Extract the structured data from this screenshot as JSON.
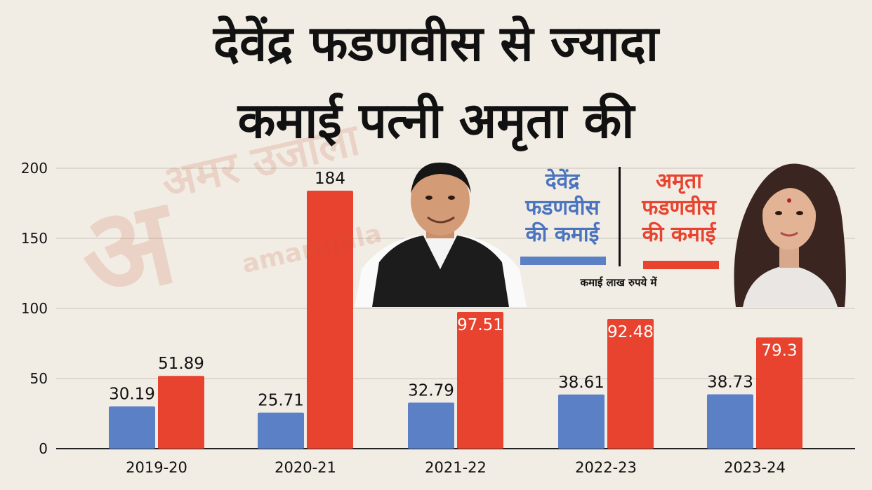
{
  "title_line1": "देवेंद्र फडणवीस से ज्यादा",
  "title_line2": "कमाई पत्नी अमृता की",
  "legend": {
    "devendra_label": [
      "देवेंद्र",
      "फडणवीस",
      "की कमाई"
    ],
    "amruta_label": [
      "अमृता",
      "फडणवीस",
      "की कमाई"
    ],
    "unit_note": "कमाई लाख रुपये में"
  },
  "watermark": {
    "logo": "अ",
    "text": "अमर उजाला",
    "url": "amarujala"
  },
  "colors": {
    "devendra": "#5b80c5",
    "amruta": "#e8432f",
    "grid": "#d6d1c8",
    "background": "#f2ede4"
  },
  "chart_data": {
    "type": "bar",
    "categories": [
      "2019-20",
      "2020-21",
      "2021-22",
      "2022-23",
      "2023-24"
    ],
    "series": [
      {
        "name": "देवेंद्र फडणवीस की कमाई",
        "values": [
          30.19,
          25.71,
          32.79,
          38.61,
          38.73
        ],
        "labels": [
          "30.19",
          "25.71",
          "32.79",
          "38.61",
          "38.73"
        ]
      },
      {
        "name": "अमृता फडणवीस की कमाई",
        "values": [
          51.89,
          184,
          97.51,
          92.48,
          79.3
        ],
        "labels": [
          "51.89",
          "184",
          "97.51",
          "92.48",
          "79.3"
        ]
      }
    ],
    "yticks": [
      "0",
      "50",
      "100",
      "150",
      "200"
    ],
    "ylim": [
      0,
      200
    ],
    "grid": true,
    "legend_position": "top-right"
  }
}
